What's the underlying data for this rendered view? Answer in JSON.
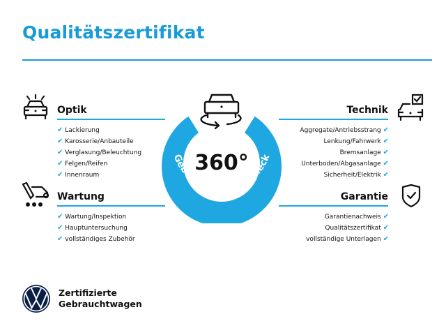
{
  "title": "Qualitätszertifikat",
  "badge": {
    "degrees": "360°",
    "arc_text": "Gebrauchtwagen-Check",
    "color": "#1fa7e1",
    "icon": "car-rotate-icon"
  },
  "sections": {
    "optik": {
      "heading": "Optik",
      "icon": "car-lights-icon",
      "items": [
        "Lackierung",
        "Karosserie/Anbauteile",
        "Verglasung/Beleuchtung",
        "Felgen/Reifen",
        "Innenraum"
      ]
    },
    "wartung": {
      "heading": "Wartung",
      "icon": "service-truck-icon",
      "items": [
        "Wartung/Inspektion",
        "Hauptuntersuchung",
        "vollständiges Zubehör"
      ]
    },
    "technik": {
      "heading": "Technik",
      "icon": "car-checklist-icon",
      "items": [
        "Aggregate/Antriebsstrang",
        "Lenkung/Fahrwerk",
        "Bremsanlage",
        "Unterboden/Abgasanlage",
        "Sicherheit/Elektrik"
      ]
    },
    "garantie": {
      "heading": "Garantie",
      "icon": "shield-check-icon",
      "items": [
        "Garantienachweis",
        "Qualitätszertifikat",
        "vollständige Unterlagen"
      ]
    }
  },
  "check_glyph": "✔",
  "brand": {
    "line1": "Zertifizierte",
    "line2": "Gebrauchtwagen",
    "logo": "vw-logo"
  },
  "colors": {
    "accent": "#1fa7e1",
    "title": "#1a9ad8",
    "text": "#111111"
  }
}
